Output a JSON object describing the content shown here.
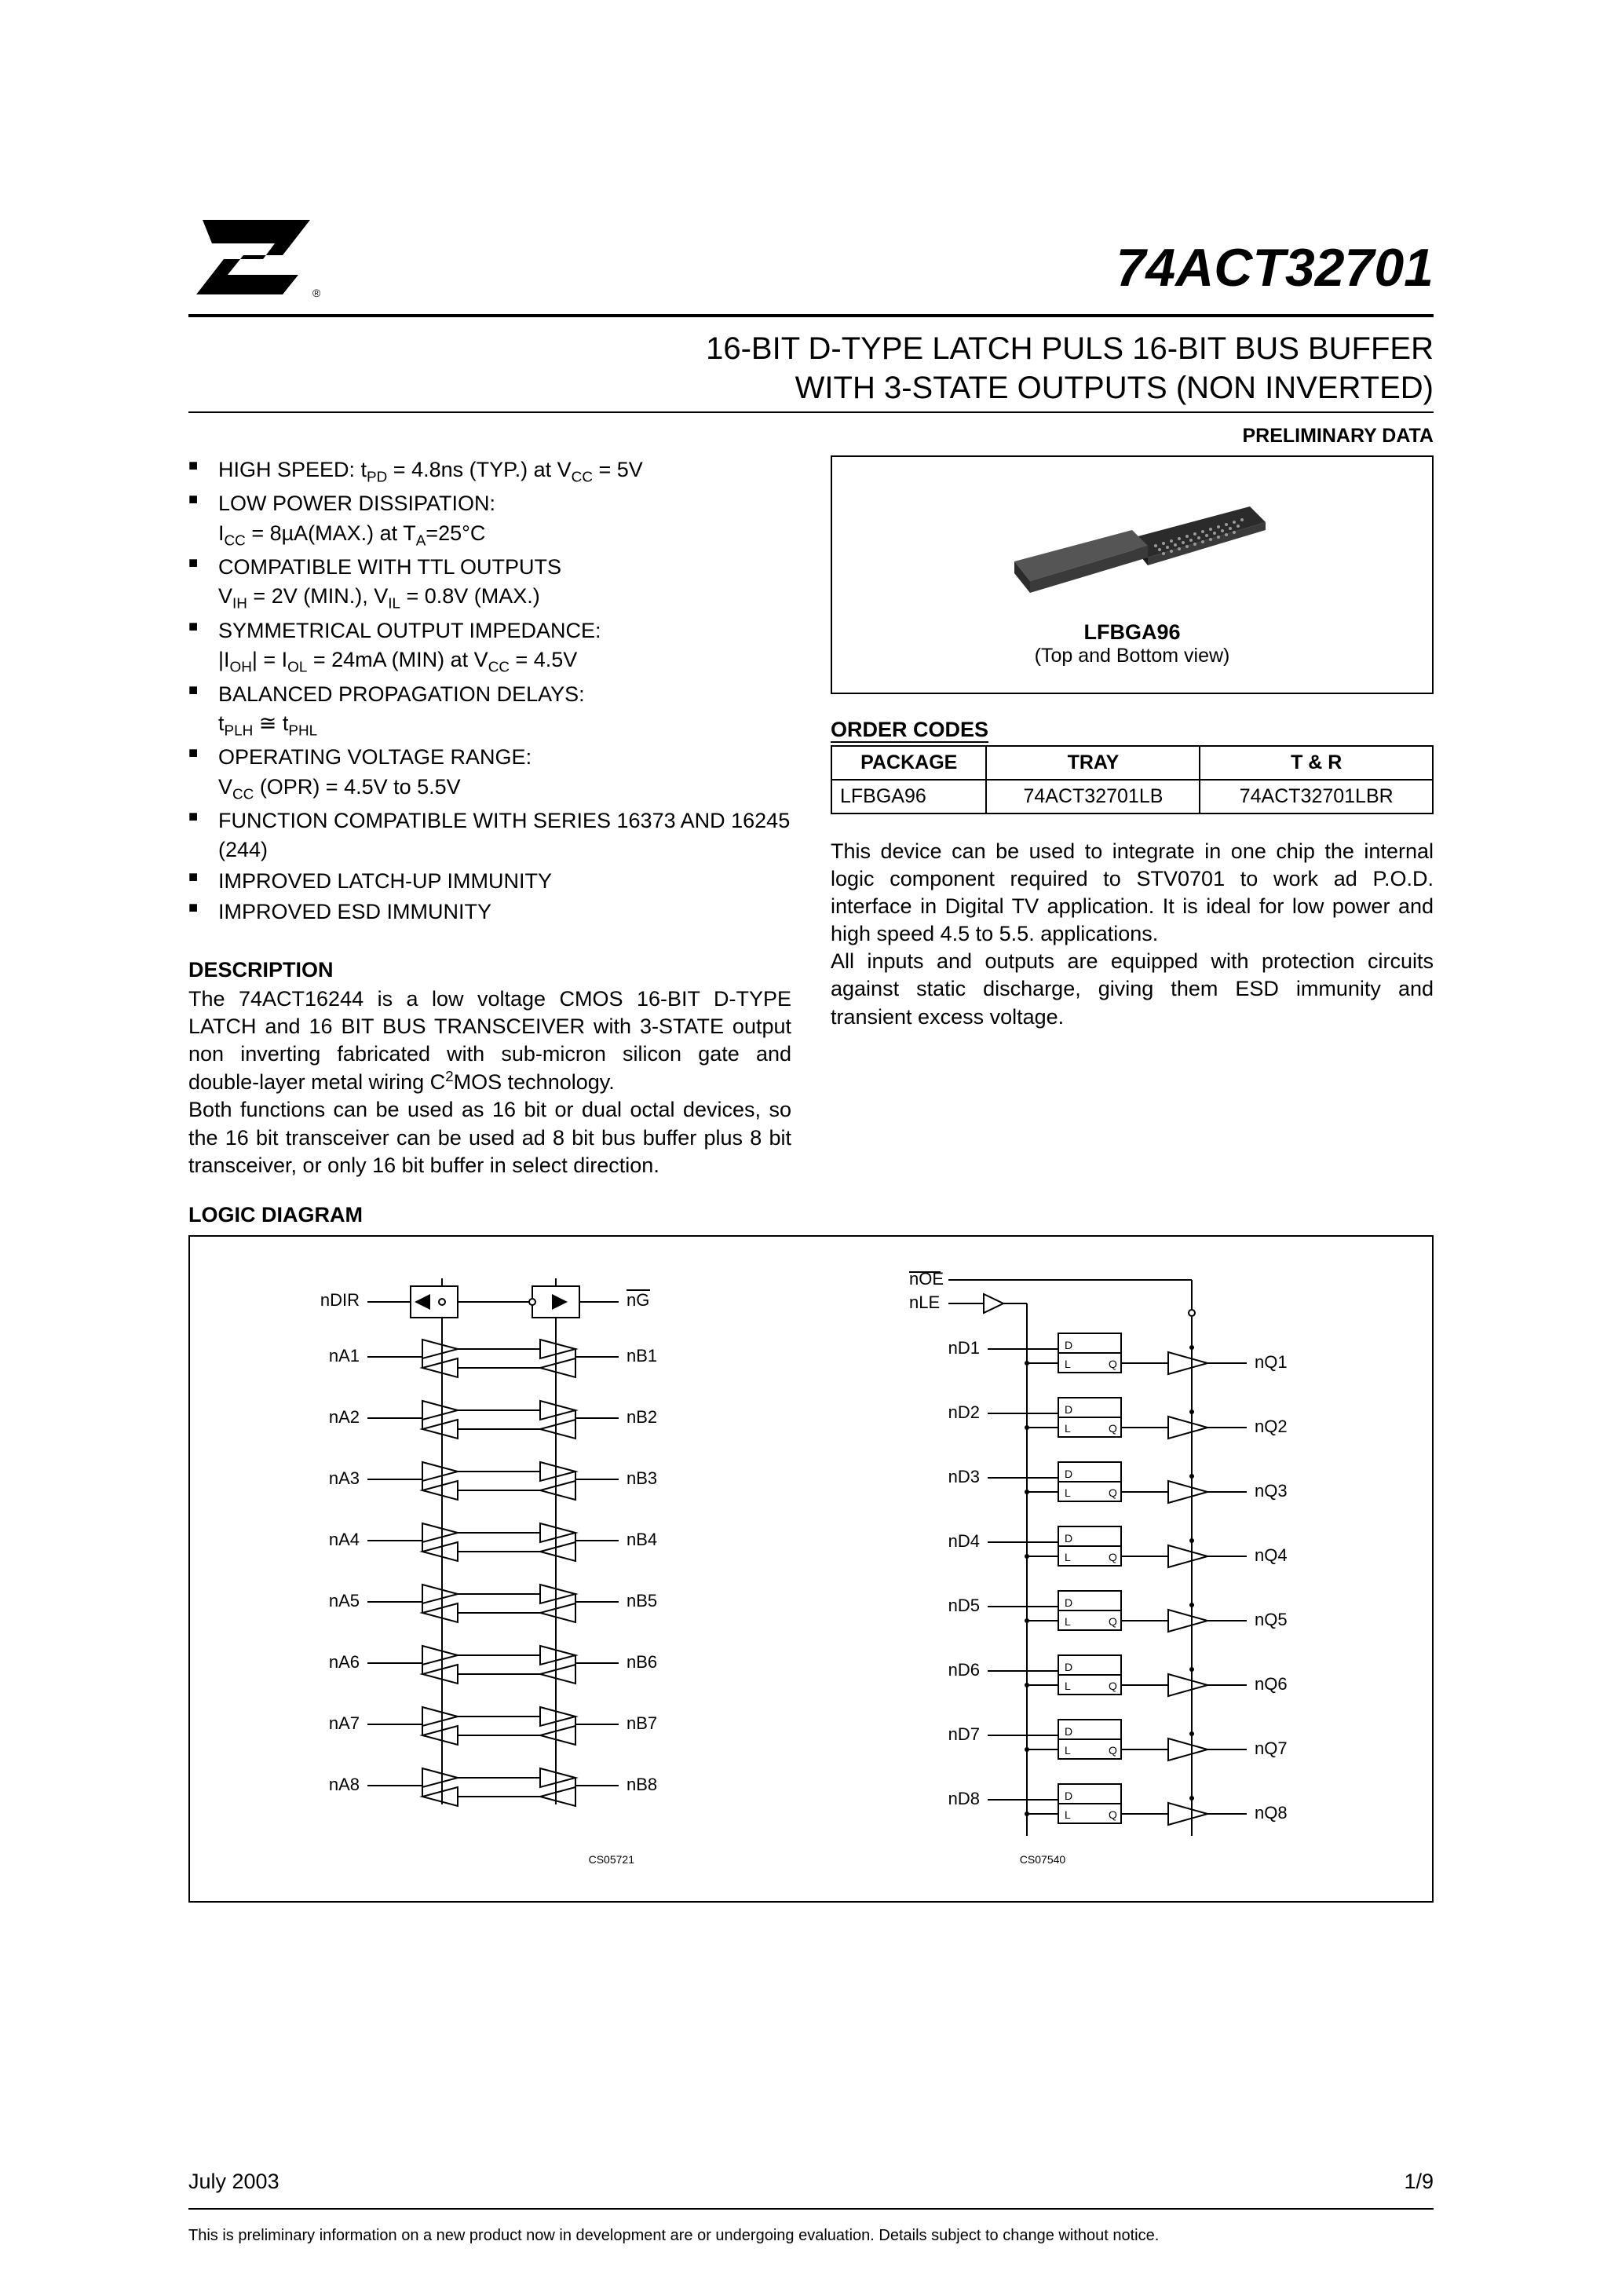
{
  "header": {
    "part_number": "74ACT32701"
  },
  "title": {
    "line1": "16-BIT D-TYPE LATCH PULS 16-BIT BUS BUFFER",
    "line2": "WITH 3-STATE OUTPUTS (NON INVERTED)"
  },
  "preliminary": "PRELIMINARY DATA",
  "features": [
    {
      "main": "HIGH SPEED: t",
      "sub_main": "PD",
      "after": " = 4.8ns (TYP.) at V",
      "sub2": "CC",
      "after2": " = 5V"
    },
    {
      "main": "LOW POWER DISSIPATION:",
      "line2_pre": "I",
      "line2_sub": "CC",
      "line2_mid": " = 8µA(MAX.) at T",
      "line2_sub2": "A",
      "line2_after": "=25°C"
    },
    {
      "main": "COMPATIBLE WITH TTL OUTPUTS",
      "line2_pre": "V",
      "line2_sub": "IH",
      "line2_mid": " = 2V (MIN.), V",
      "line2_sub2": "IL",
      "line2_after": " = 0.8V (MAX.)"
    },
    {
      "main": "SYMMETRICAL OUTPUT IMPEDANCE:",
      "line2_pre": "|I",
      "line2_sub": "OH",
      "line2_mid": "| = I",
      "line2_sub2": "OL",
      "line2_mid2": " = 24mA (MIN) at V",
      "line2_sub3": "CC",
      "line2_after": " = 4.5V"
    },
    {
      "main": "BALANCED PROPAGATION DELAYS:",
      "line2_pre": "t",
      "line2_sub": "PLH",
      "line2_mid": " ≅ t",
      "line2_sub2": "PHL",
      "line2_after": ""
    },
    {
      "main": "OPERATING VOLTAGE RANGE:",
      "line2_pre": "V",
      "line2_sub": "CC",
      "line2_mid": " (OPR) = 4.5V to 5.5V",
      "line2_after": ""
    },
    {
      "main": "FUNCTION COMPATIBLE WITH SERIES 16373 AND 16245 (244)"
    },
    {
      "main": "IMPROVED LATCH-UP IMMUNITY"
    },
    {
      "main": "IMPROVED ESD IMMUNITY"
    }
  ],
  "description": {
    "heading": "DESCRIPTION",
    "para1": "The 74ACT16244 is a low voltage CMOS 16-BIT D-TYPE LATCH and 16 BIT BUS TRANSCEIVER with 3-STATE output non inverting fabricated with sub-micron silicon gate and double-layer metal wiring C²MOS technology.",
    "para2": "Both functions can be used as 16 bit or dual octal devices, so the 16 bit transceiver can be used ad 8 bit bus buffer plus 8 bit transceiver, or only 16 bit buffer in select direction."
  },
  "package": {
    "image_label": "LFBGA96",
    "image_sub": "(Top and Bottom view)"
  },
  "order_codes": {
    "heading": "ORDER CODES",
    "columns": [
      "PACKAGE",
      "TRAY",
      "T & R"
    ],
    "rows": [
      [
        "LFBGA96",
        "74ACT32701LB",
        "74ACT32701LBR"
      ]
    ]
  },
  "right_para": {
    "p1": "This device can be used to integrate in one chip the internal logic component required to STV0701 to work ad P.O.D. interface in Digital TV application. It is ideal for low power and high speed 4.5 to 5.5. applications.",
    "p2": "All inputs and outputs are equipped with protection circuits against static discharge, giving them ESD immunity and transient excess voltage."
  },
  "logic_diagram": {
    "heading": "LOGIC DIAGRAM",
    "left": {
      "top_left": "nDIR",
      "top_right_over": "nG",
      "rows_left": [
        "nA1",
        "nA2",
        "nA3",
        "nA4",
        "nA5",
        "nA6",
        "nA7",
        "nA8"
      ],
      "rows_right": [
        "nB1",
        "nB2",
        "nB3",
        "nB4",
        "nB5",
        "nB6",
        "nB7",
        "nB8"
      ],
      "code": "CS05721"
    },
    "right": {
      "top1_over": "nOE",
      "top2": "nLE",
      "rows_left": [
        "nD1",
        "nD2",
        "nD3",
        "nD4",
        "nD5",
        "nD6",
        "nD7",
        "nD8"
      ],
      "rows_right": [
        "nQ1",
        "nQ2",
        "nQ3",
        "nQ4",
        "nQ5",
        "nQ6",
        "nQ7",
        "nQ8"
      ],
      "latch_d": "D",
      "latch_l": "L",
      "latch_q": "Q",
      "code": "CS07540"
    }
  },
  "footer": {
    "date": "July 2003",
    "page": "1/9",
    "note": "This is preliminary information on a new product now in development are or undergoing evaluation. Details subject to change without notice."
  },
  "colors": {
    "text": "#000000",
    "bg": "#ffffff",
    "chip_dark": "#2b2b2b",
    "chip_top": "#555555",
    "chip_dots": "#888888"
  }
}
